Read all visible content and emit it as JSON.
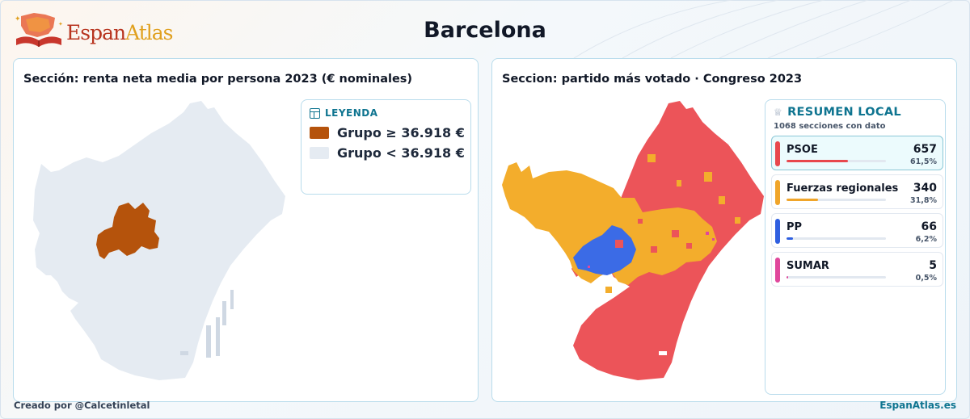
{
  "header": {
    "logo_text_a": "Espan",
    "logo_text_b": "Atlas",
    "title": "Barcelona"
  },
  "left_panel": {
    "title": "Sección: renta neta media por persona 2023 (€ nominales)",
    "legend": {
      "heading": "LEYENDA",
      "items": [
        {
          "label": "Grupo ≥ 36.918 €",
          "color": "#b5530c"
        },
        {
          "label": "Grupo < 36.918 €",
          "color": "#e5ebf2"
        }
      ]
    }
  },
  "right_panel": {
    "title": "Seccion: partido más votado · Congreso 2023",
    "summary": {
      "heading": "RESUMEN LOCAL",
      "subtitle": "1068 secciones con dato",
      "parties": [
        {
          "name": "PSOE",
          "count": "657",
          "pct": "61,5%",
          "share": 0.615,
          "color": "#e8484d",
          "active": true
        },
        {
          "name": "Fuerzas regionales",
          "count": "340",
          "pct": "31,8%",
          "share": 0.318,
          "color": "#f0a52a",
          "active": false
        },
        {
          "name": "PP",
          "count": "66",
          "pct": "6,2%",
          "share": 0.062,
          "color": "#2f5fe0",
          "active": false
        },
        {
          "name": "SUMAR",
          "count": "5",
          "pct": "0,5%",
          "share": 0.005,
          "color": "#e0479c",
          "active": false
        }
      ]
    },
    "map_colors": {
      "psoe": "#ec5459",
      "regional": "#f3ad2c",
      "pp": "#3b6be6",
      "sumar": "#e0479c"
    }
  },
  "footer": {
    "credit": "Creado por @Calcetinletal",
    "site": "EspanAtlas.es"
  }
}
